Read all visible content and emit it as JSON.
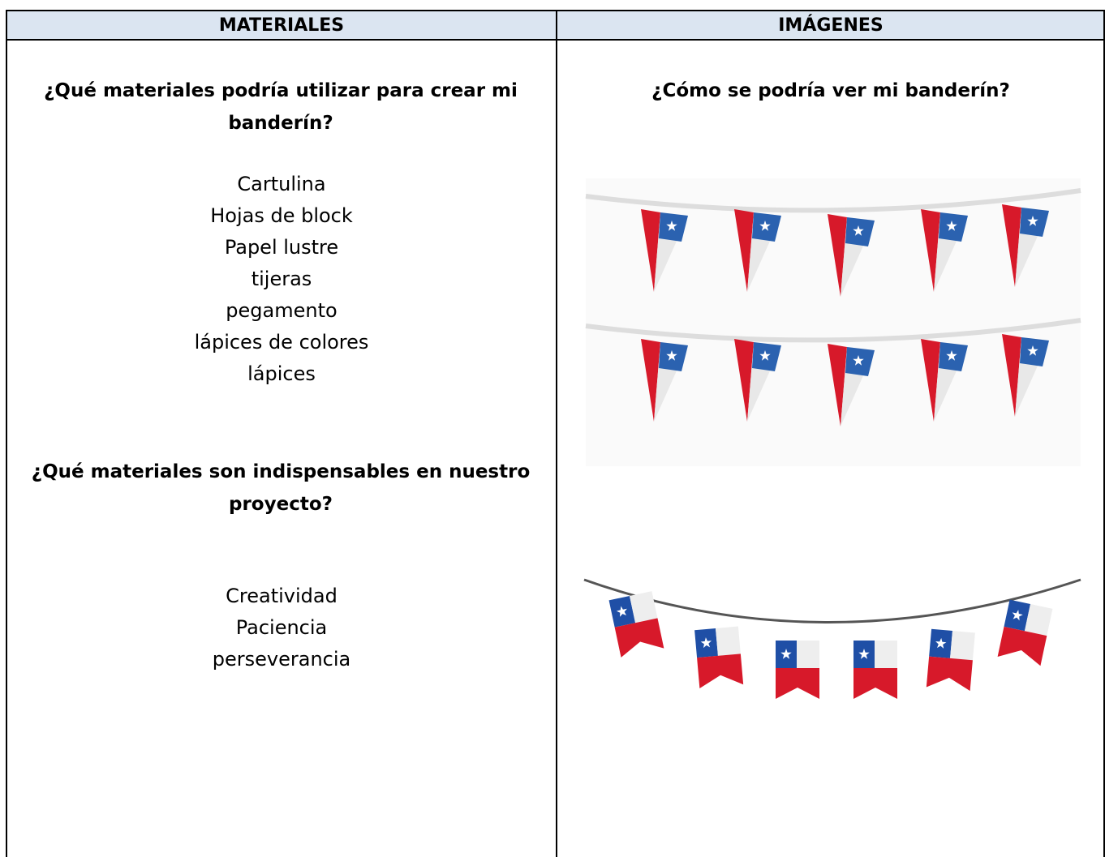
{
  "table": {
    "headers": [
      "MATERIALES",
      "IMÁGENES"
    ],
    "left": {
      "question_1": "¿Qué materiales podría utilizar para crear mi banderín?",
      "materials": [
        "Cartulina",
        "Hojas de block",
        "Papel lustre",
        "tijeras",
        "pegamento",
        "lápices de colores",
        "lápices"
      ],
      "question_2": "¿Qué materiales son indispensables en nuestro proyecto?",
      "essentials": [
        "Creatividad",
        "Paciencia",
        "perseverancia"
      ]
    },
    "right": {
      "question": "¿Cómo se podría ver mi banderín?"
    }
  }
}
